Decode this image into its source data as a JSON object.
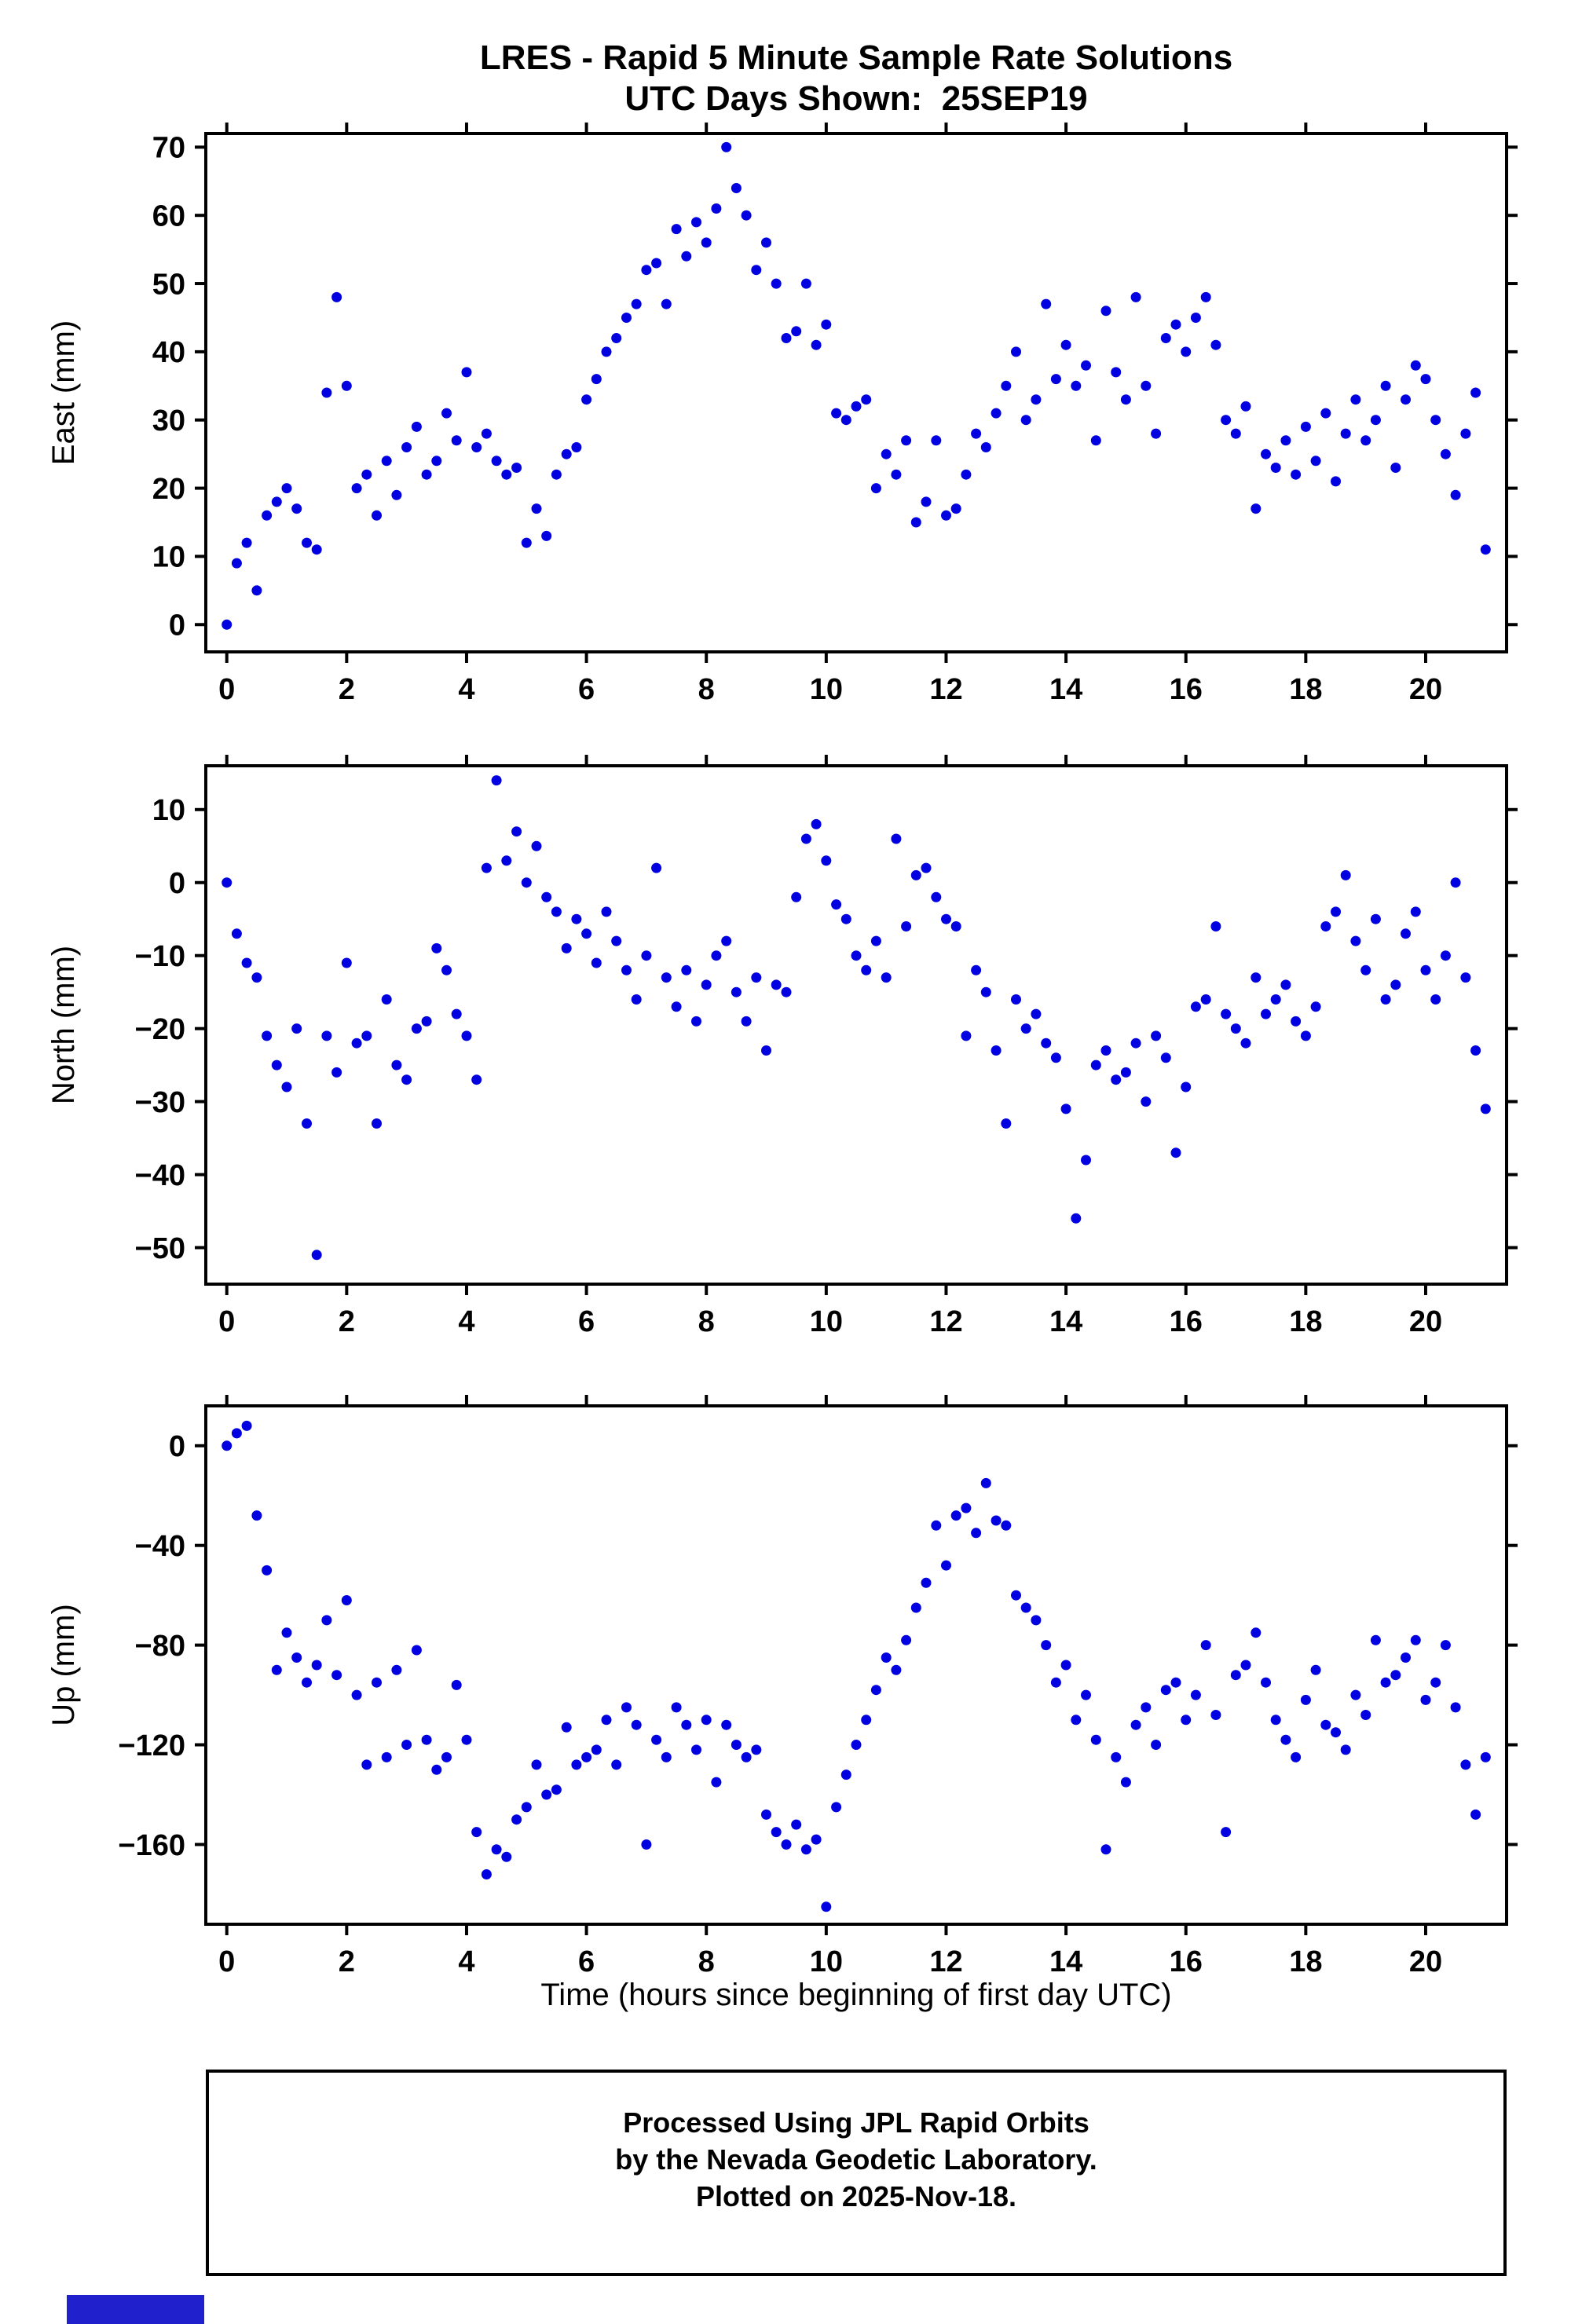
{
  "page": {
    "title_line1": "LRES - Rapid 5 Minute Sample Rate Solutions",
    "title_line2": "UTC Days Shown:  25SEP19",
    "x_axis_title": "Time (hours since beginning of first day UTC)",
    "footer_lines": [
      "Processed Using JPL Rapid Orbits",
      "by the Nevada Geodetic Laboratory.",
      "Plotted on 2025-Nov-18."
    ],
    "point_color": "#0000e0",
    "frame_color": "#000000",
    "logo_color": "#2020cc"
  },
  "chart_data": [
    {
      "type": "scatter",
      "name": "east",
      "title": "LRES - Rapid 5 Minute Sample Rate Solutions",
      "ylabel": "East (mm)",
      "xlabel": "Time (hours since beginning of first day UTC)",
      "x_start": 0,
      "x_step": 0.1666667,
      "xlim": [
        -0.35,
        21.35
      ],
      "ylim": [
        -4,
        72
      ],
      "xticks": [
        0,
        2,
        4,
        6,
        8,
        10,
        12,
        14,
        16,
        18,
        20
      ],
      "yticks": [
        0,
        10,
        20,
        30,
        40,
        50,
        60,
        70
      ],
      "grid": false,
      "legend": "none",
      "values": [
        0,
        9,
        12,
        5,
        16,
        18,
        20,
        17,
        12,
        11,
        34,
        48,
        35,
        20,
        22,
        16,
        24,
        19,
        26,
        29,
        22,
        24,
        31,
        27,
        37,
        26,
        28,
        24,
        22,
        23,
        12,
        17,
        13,
        22,
        25,
        26,
        33,
        36,
        40,
        42,
        45,
        47,
        52,
        53,
        47,
        58,
        54,
        59,
        56,
        61,
        70,
        64,
        60,
        52,
        56,
        50,
        42,
        43,
        50,
        41,
        44,
        31,
        30,
        32,
        33,
        20,
        25,
        22,
        27,
        15,
        18,
        27,
        16,
        17,
        22,
        28,
        26,
        31,
        35,
        40,
        30,
        33,
        47,
        36,
        41,
        35,
        38,
        27,
        46,
        37,
        33,
        48,
        35,
        28,
        42,
        44,
        40,
        45,
        48,
        41,
        30,
        28,
        32,
        17,
        25,
        23,
        27,
        22,
        29,
        24,
        31,
        21,
        28,
        33,
        27,
        30,
        35,
        23,
        33,
        38,
        36,
        30,
        25,
        19,
        28,
        34,
        11
      ]
    },
    {
      "type": "scatter",
      "name": "north",
      "ylabel": "North (mm)",
      "xlabel": "Time (hours since beginning of first day UTC)",
      "x_start": 0,
      "x_step": 0.1666667,
      "xlim": [
        -0.35,
        21.35
      ],
      "ylim": [
        -55,
        16
      ],
      "xticks": [
        0,
        2,
        4,
        6,
        8,
        10,
        12,
        14,
        16,
        18,
        20
      ],
      "yticks": [
        -50,
        -40,
        -30,
        -20,
        -10,
        0,
        10
      ],
      "grid": false,
      "legend": "none",
      "values": [
        0,
        -7,
        -11,
        -13,
        -21,
        -25,
        -28,
        -20,
        -33,
        -51,
        -21,
        -26,
        -11,
        -22,
        -21,
        -33,
        -16,
        -25,
        -27,
        -20,
        -19,
        -9,
        -12,
        -18,
        -21,
        -27,
        2,
        14,
        3,
        7,
        0,
        5,
        -2,
        -4,
        -9,
        -5,
        -7,
        -11,
        -4,
        -8,
        -12,
        -16,
        -10,
        2,
        -13,
        -17,
        -12,
        -19,
        -14,
        -10,
        -8,
        -15,
        -19,
        -13,
        -23,
        -14,
        -15,
        -2,
        6,
        8,
        3,
        -3,
        -5,
        -10,
        -12,
        -8,
        -13,
        6,
        -6,
        1,
        2,
        -2,
        -5,
        -6,
        -21,
        -12,
        -15,
        -23,
        -33,
        -16,
        -20,
        -18,
        -22,
        -24,
        -31,
        -46,
        -38,
        -25,
        -23,
        -27,
        -26,
        -22,
        -30,
        -21,
        -24,
        -37,
        -28,
        -17,
        -16,
        -6,
        -18,
        -20,
        -22,
        -13,
        -18,
        -16,
        -14,
        -19,
        -21,
        -17,
        -6,
        -4,
        1,
        -8,
        -12,
        -5,
        -16,
        -14,
        -7,
        -4,
        -12,
        -16,
        -10,
        0,
        -13,
        -23,
        -31
      ]
    },
    {
      "type": "scatter",
      "name": "up",
      "ylabel": "Up (mm)",
      "xlabel": "Time (hours since beginning of first day UTC)",
      "x_start": 0,
      "x_step": 0.1666667,
      "xlim": [
        -0.35,
        21.35
      ],
      "ylim": [
        -192,
        16
      ],
      "xticks": [
        0,
        2,
        4,
        6,
        8,
        10,
        12,
        14,
        16,
        18,
        20
      ],
      "yticks": [
        -160,
        -120,
        -80,
        -40,
        0
      ],
      "grid": false,
      "legend": "none",
      "values": [
        0,
        5,
        8,
        -28,
        -50,
        -90,
        -75,
        -85,
        -95,
        -88,
        -70,
        -92,
        -62,
        -100,
        -128,
        -95,
        -125,
        -90,
        -120,
        -82,
        -118,
        -130,
        -125,
        -96,
        -118,
        -155,
        -172,
        -162,
        -165,
        -150,
        -145,
        -128,
        -140,
        -138,
        -113,
        -128,
        -125,
        -122,
        -110,
        -128,
        -105,
        -112,
        -160,
        -118,
        -125,
        -105,
        -112,
        -122,
        -110,
        -135,
        -112,
        -120,
        -125,
        -122,
        -148,
        -155,
        -160,
        -152,
        -162,
        -158,
        -185,
        -145,
        -132,
        -120,
        -110,
        -98,
        -85,
        -90,
        -78,
        -65,
        -55,
        -32,
        -48,
        -28,
        -25,
        -35,
        -15,
        -30,
        -32,
        -60,
        -65,
        -70,
        -80,
        -95,
        -88,
        -110,
        -100,
        -118,
        -162,
        -125,
        -135,
        -112,
        -105,
        -120,
        -98,
        -95,
        -110,
        -100,
        -80,
        -108,
        -155,
        -92,
        -88,
        -75,
        -95,
        -110,
        -118,
        -125,
        -102,
        -90,
        -112,
        -115,
        -122,
        -100,
        -108,
        -78,
        -95,
        -92,
        -85,
        -78,
        -102,
        -95,
        -80,
        -105,
        -128,
        -148,
        -125
      ]
    }
  ]
}
